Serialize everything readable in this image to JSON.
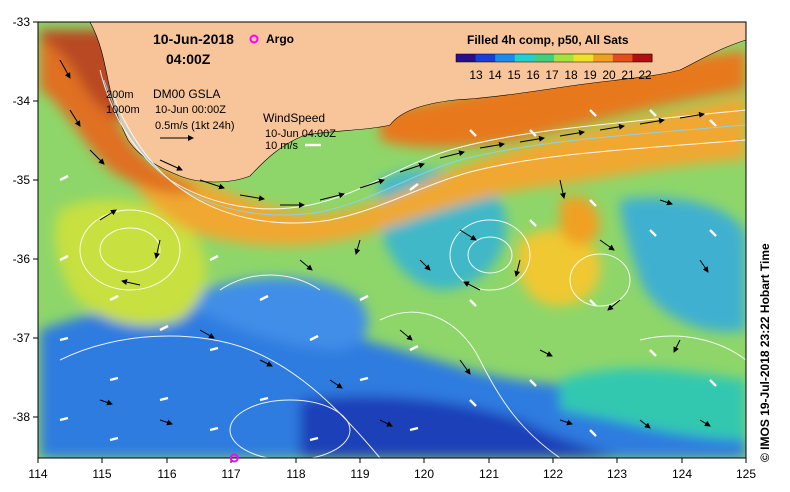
{
  "header": {
    "date": "10-Jun-2018",
    "time": "04:00Z",
    "argo_label": "Argo"
  },
  "product": {
    "title": "Filled 4h comp, p50, All Sats",
    "colorbar_ticks": [
      "13",
      "14",
      "15",
      "16",
      "17",
      "18",
      "19",
      "20",
      "21",
      "22"
    ],
    "colors": [
      "#2a0f8c",
      "#1a3fd8",
      "#1a8cf0",
      "#22d0d0",
      "#3ed07a",
      "#a8e040",
      "#f0e02a",
      "#f0a020",
      "#e05018",
      "#b01010"
    ]
  },
  "legend": {
    "depth_200": "200m",
    "depth_1000": "1000m",
    "gsla_title": "DM00 GSLA",
    "gsla_time": "10-Jun 00:00Z",
    "current_scale": "0.5m/s (1kt 24h)",
    "wind_title": "WindSpeed",
    "wind_time": "10-Jun 04:00Z",
    "wind_scale": "10 m/s"
  },
  "axes": {
    "x_ticks": [
      "114",
      "115",
      "116",
      "117",
      "118",
      "119",
      "120",
      "121",
      "122",
      "123",
      "124",
      "125"
    ],
    "y_ticks": [
      "-33",
      "-34",
      "-35",
      "-36",
      "-37",
      "-38"
    ]
  },
  "credit": "© IMOS 19-Jul-2018 23:22 Hobart Time",
  "marks": {
    "argo_float": {
      "lon": 117.05,
      "lat": -38.5
    }
  }
}
